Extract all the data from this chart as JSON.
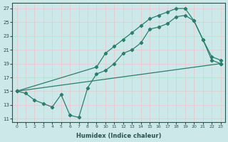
{
  "xlabel": "Humidex (Indice chaleur)",
  "bg_color": "#cce8e8",
  "grid_color": "#b8d8d8",
  "line_color": "#2d7d6e",
  "xlim": [
    -0.5,
    23.5
  ],
  "ylim": [
    10.5,
    27.8
  ],
  "xticks": [
    0,
    1,
    2,
    3,
    4,
    5,
    6,
    7,
    8,
    9,
    10,
    11,
    12,
    13,
    14,
    15,
    16,
    17,
    18,
    19,
    20,
    21,
    22,
    23
  ],
  "yticks": [
    11,
    13,
    15,
    17,
    19,
    21,
    23,
    25,
    27
  ],
  "line1_x": [
    0,
    1,
    2,
    3,
    4,
    5,
    6,
    7,
    8,
    9,
    10,
    11,
    12,
    13,
    14,
    15,
    16,
    17,
    18,
    19,
    20,
    21,
    22,
    23
  ],
  "line1_y": [
    15,
    14.7,
    13.7,
    13.2,
    12.7,
    14.5,
    11.5,
    11.2,
    15.5,
    17.5,
    18.0,
    19.0,
    20.5,
    21.0,
    22.0,
    24.0,
    24.3,
    24.8,
    25.8,
    26.0,
    25.2,
    22.5,
    19.5,
    19.0
  ],
  "line2_x": [
    0,
    9,
    10,
    11,
    12,
    13,
    14,
    15,
    16,
    17,
    18,
    19,
    20,
    21,
    22,
    23
  ],
  "line2_y": [
    15,
    18.5,
    20.5,
    21.5,
    22.5,
    23.5,
    24.5,
    25.5,
    26.0,
    26.5,
    27.0,
    27.0,
    25.2,
    22.5,
    20.0,
    19.5
  ],
  "line3_x": [
    0,
    23
  ],
  "line3_y": [
    15,
    19.0
  ]
}
